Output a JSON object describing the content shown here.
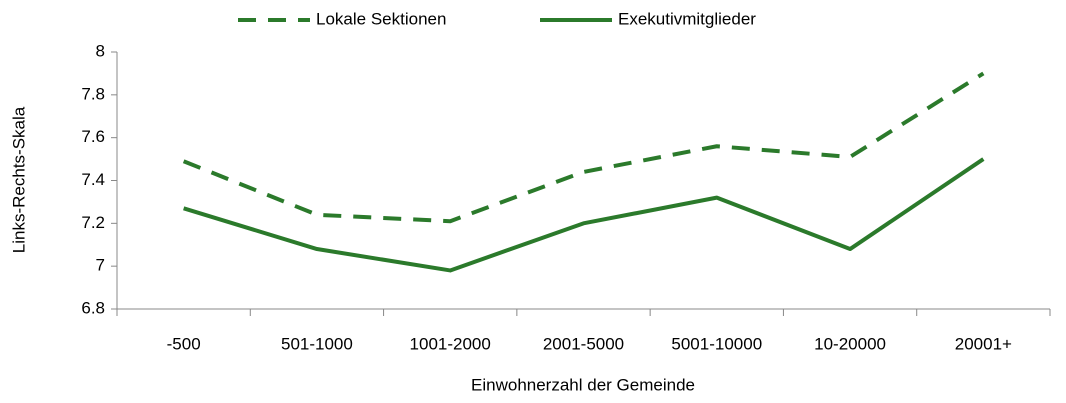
{
  "chart_data": {
    "type": "line",
    "categories": [
      "-500",
      "501-1000",
      "1001-2000",
      "2001-5000",
      "5001-10000",
      "10-20000",
      "20001+"
    ],
    "series": [
      {
        "name": "Lokale Sektionen",
        "color": "#2b7a2b",
        "dashed": true,
        "values": [
          7.49,
          7.24,
          7.21,
          7.44,
          7.56,
          7.51,
          7.9
        ]
      },
      {
        "name": "Exekutivmitglieder",
        "color": "#2b7a2b",
        "dashed": false,
        "values": [
          7.27,
          7.08,
          6.98,
          7.2,
          7.32,
          7.08,
          7.5
        ]
      }
    ],
    "xlabel": "Einwohnerzahl der Gemeinde",
    "ylabel": "Links-Rechts-Skala",
    "ylim": [
      6.8,
      8
    ],
    "yticks": [
      6.8,
      7,
      7.2,
      7.4,
      7.6,
      7.8,
      8
    ],
    "grid": false,
    "legend": "top"
  }
}
